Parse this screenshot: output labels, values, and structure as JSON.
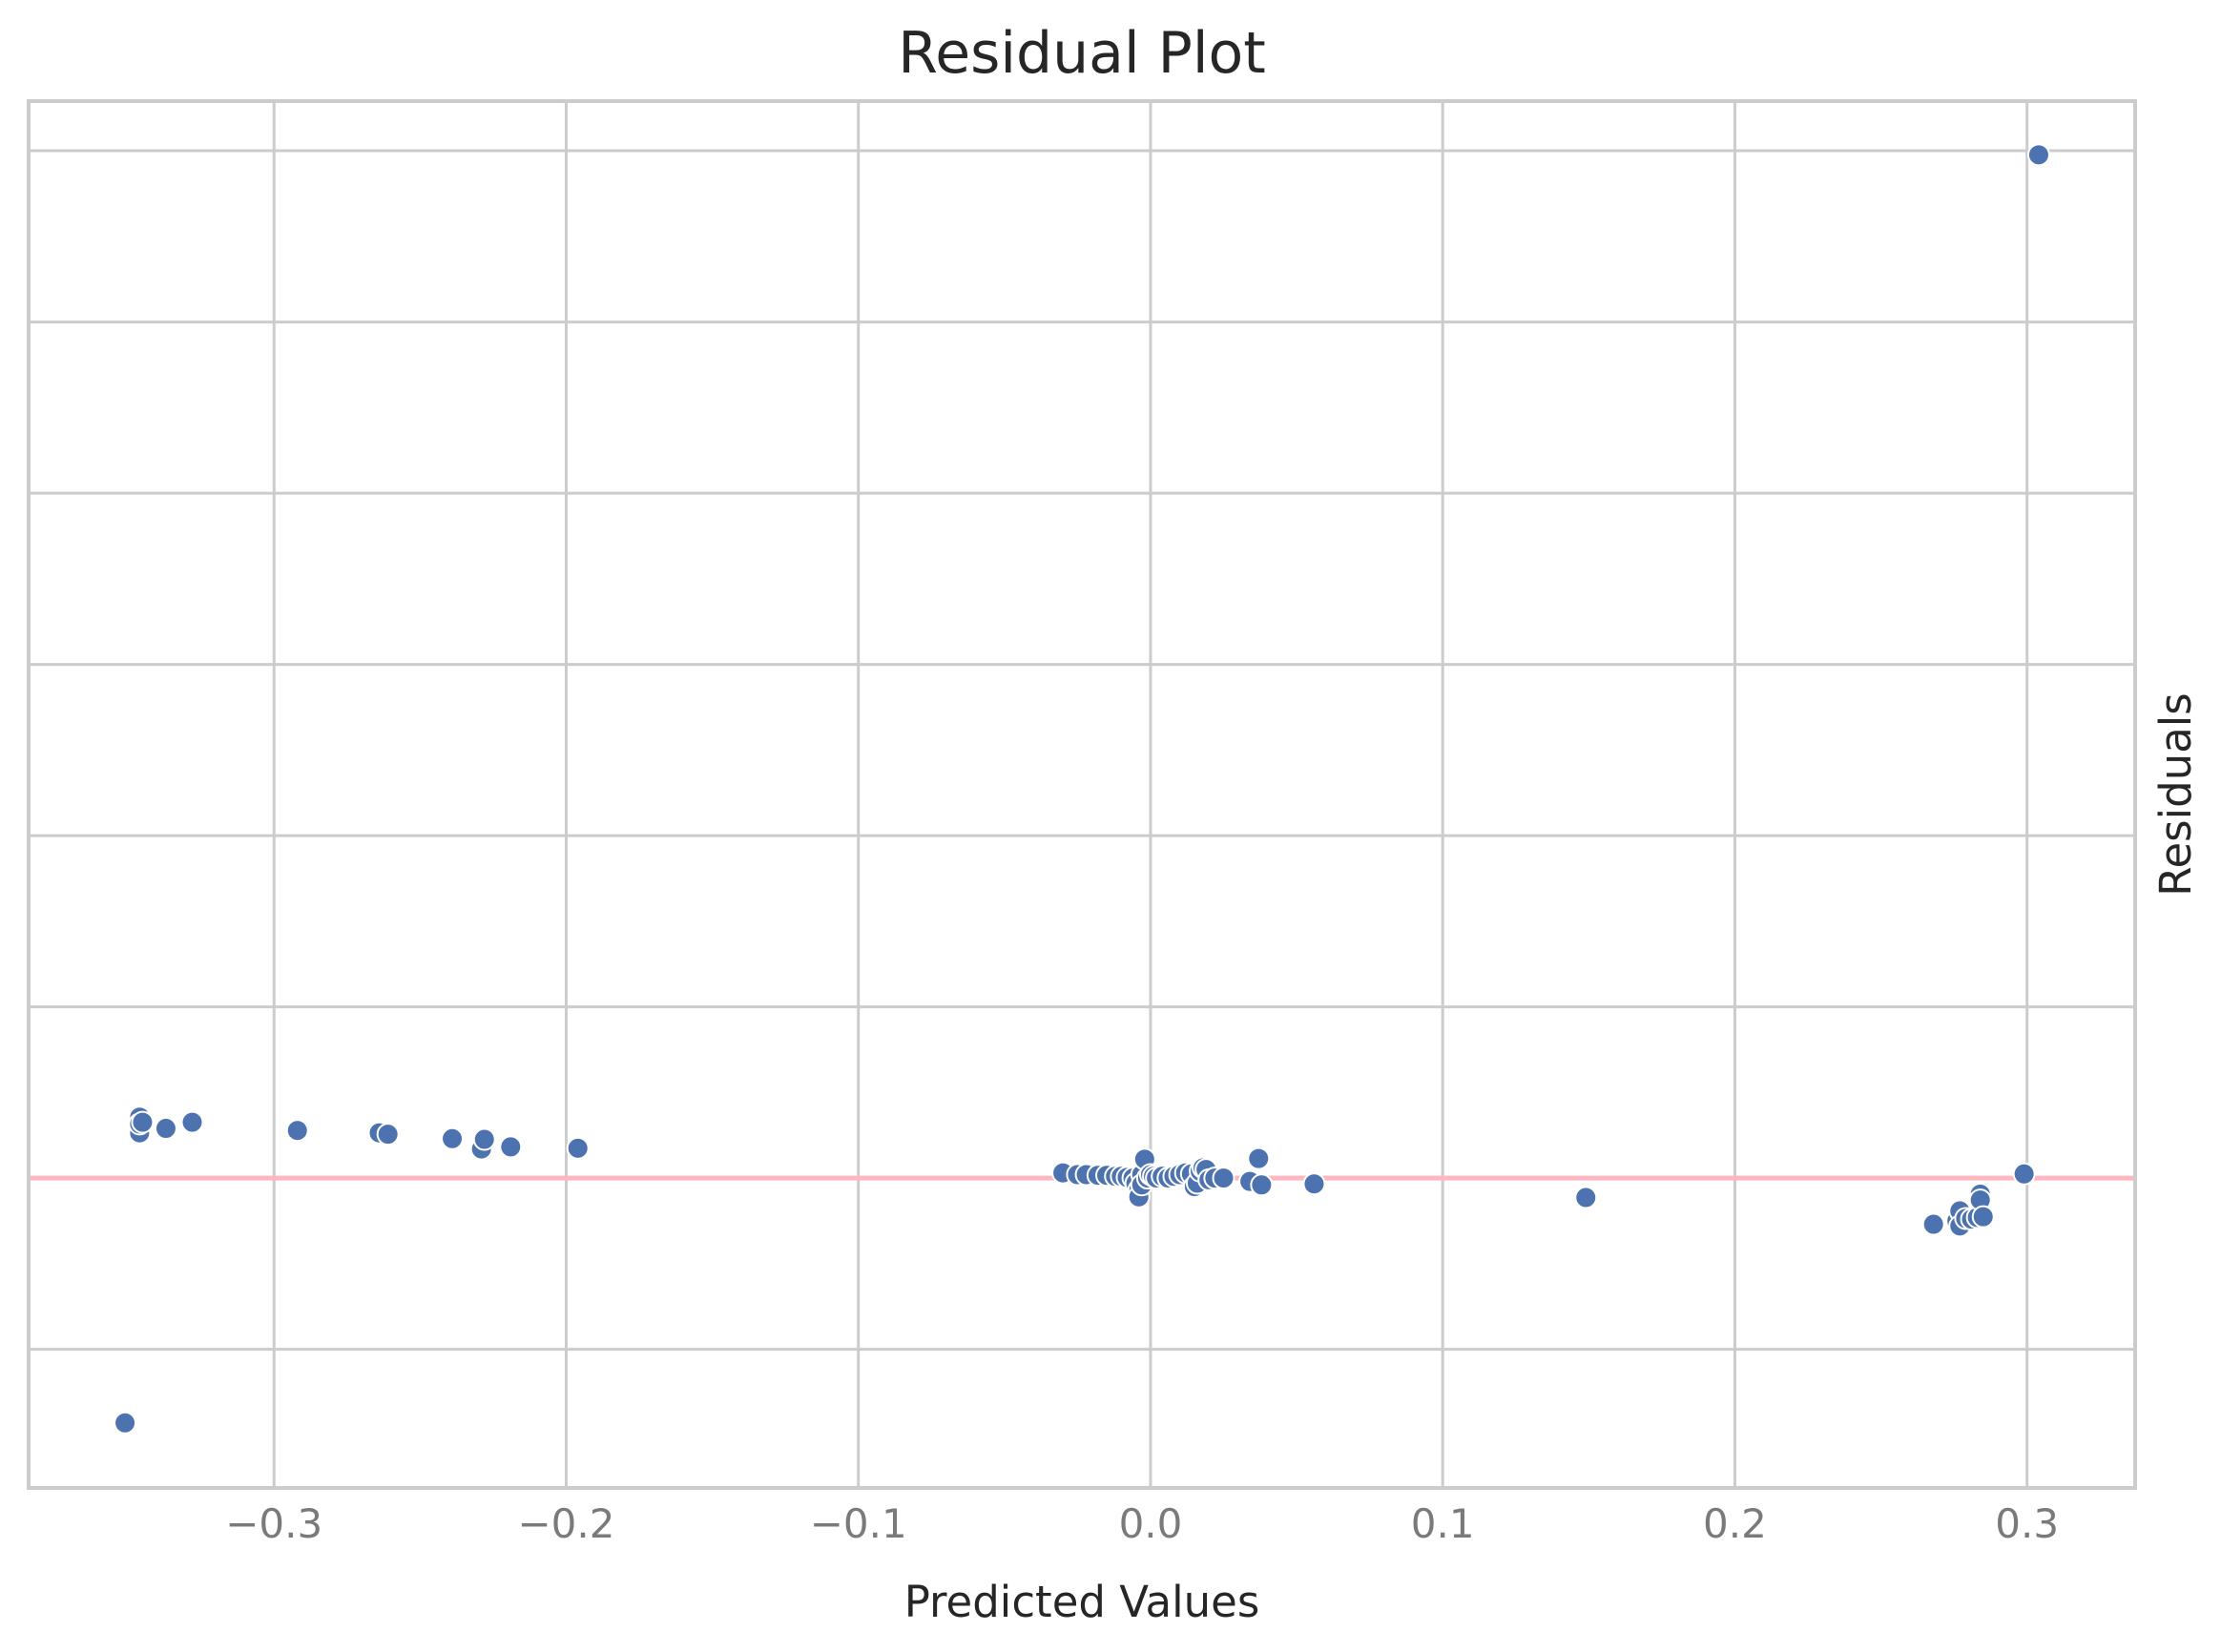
{
  "chart_data": {
    "type": "scatter",
    "title": "Residual Plot",
    "xlabel": "Predicted Values",
    "ylabel": "Residuals",
    "xlim": [
      -0.384,
      0.337
    ],
    "ylim": [
      -0.905,
      3.145
    ],
    "x_ticks": [
      -0.3,
      -0.2,
      -0.1,
      0.0,
      0.1,
      0.2,
      0.3
    ],
    "x_tick_labels": [
      "−0.3",
      "−0.2",
      "−0.1",
      "0.0",
      "0.1",
      "0.2",
      "0.3"
    ],
    "y_gridlines": [
      -0.5,
      0.0,
      0.5,
      1.0,
      1.5,
      2.0,
      2.5,
      3.0
    ],
    "y_tick_labels_visible": false,
    "grid": true,
    "reference_line": {
      "y": 0,
      "color": "#ffb6c1"
    },
    "marker_color": "#4c72b0",
    "marker_edge_color": "#ffffff",
    "x": [
      -0.351,
      -0.346,
      -0.346,
      -0.346,
      -0.345,
      -0.337,
      -0.328,
      -0.292,
      -0.264,
      -0.261,
      -0.239,
      -0.229,
      -0.228,
      -0.219,
      -0.196,
      -0.03,
      -0.025,
      -0.022,
      -0.018,
      -0.015,
      -0.012,
      -0.01,
      -0.008,
      -0.006,
      -0.005,
      -0.004,
      -0.004,
      -0.003,
      -0.003,
      -0.002,
      -0.001,
      0.0,
      0.001,
      0.002,
      0.004,
      0.006,
      0.008,
      0.01,
      0.012,
      0.014,
      0.015,
      0.016,
      0.017,
      0.018,
      0.019,
      0.02,
      0.022,
      0.025,
      0.034,
      0.037,
      0.038,
      0.056,
      0.149,
      0.268,
      0.276,
      0.277,
      0.277,
      0.279,
      0.281,
      0.283,
      0.284,
      0.284,
      0.285,
      0.299,
      0.304
    ],
    "y": [
      -0.715,
      0.132,
      0.178,
      0.158,
      0.163,
      0.145,
      0.163,
      0.139,
      0.132,
      0.128,
      0.115,
      0.085,
      0.113,
      0.091,
      0.087,
      0.015,
      0.01,
      0.01,
      0.008,
      0.008,
      0.005,
      0.005,
      0.002,
      0.0,
      -0.015,
      -0.035,
      -0.055,
      0.01,
      -0.02,
      0.055,
      0.0,
      0.01,
      0.005,
      0.0,
      0.005,
      0.0,
      0.005,
      0.01,
      0.015,
      0.012,
      -0.025,
      -0.015,
      0.02,
      0.03,
      0.025,
      -0.005,
      0.0,
      0.0,
      -0.01,
      0.057,
      -0.02,
      -0.017,
      -0.057,
      -0.135,
      -0.125,
      -0.096,
      -0.14,
      -0.118,
      -0.12,
      -0.115,
      -0.047,
      -0.064,
      -0.113,
      0.012,
      2.988
    ]
  }
}
